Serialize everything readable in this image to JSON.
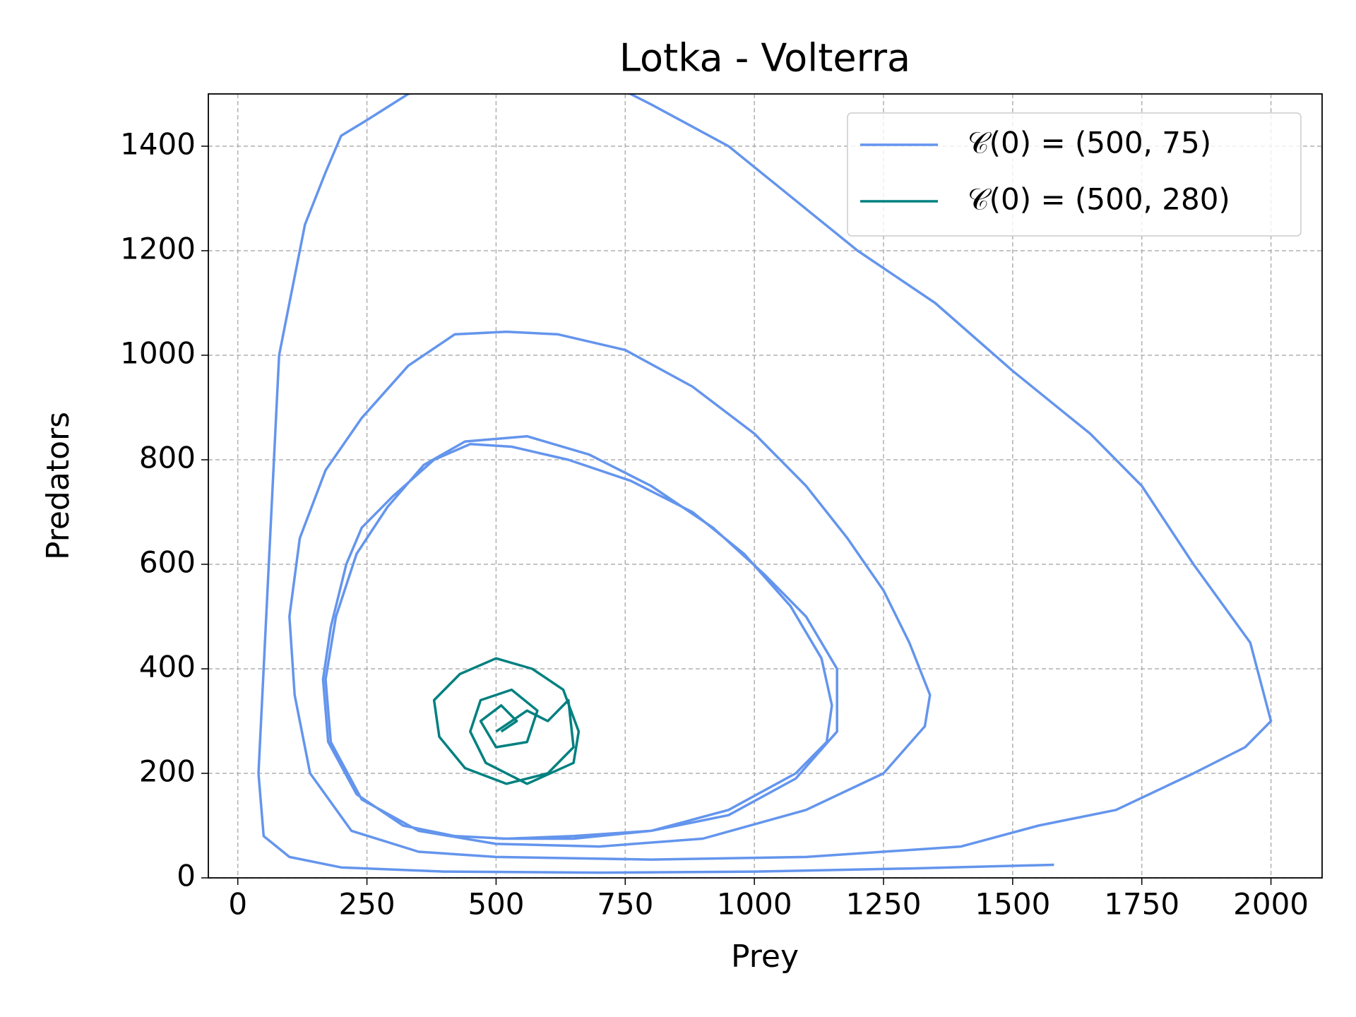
{
  "chart_data": {
    "type": "line",
    "title": "Lotka - Volterra",
    "xlabel": "Prey",
    "ylabel": "Predators",
    "xlim": [
      -57,
      2099
    ],
    "ylim": [
      0,
      1500
    ],
    "xticks": [
      0,
      250,
      500,
      750,
      1000,
      1250,
      1500,
      1750,
      2000
    ],
    "yticks": [
      0,
      200,
      400,
      600,
      800,
      1000,
      1200,
      1400
    ],
    "grid": true,
    "legend": "upper right",
    "series": [
      {
        "name": "𝒞(0) = (500, 75)",
        "color": "#6495ed",
        "x": [
          500,
          650,
          800,
          950,
          1080,
          1140,
          1150,
          1130,
          1070,
          980,
          880,
          760,
          640,
          530,
          450,
          380,
          300,
          240,
          210,
          180,
          165,
          175,
          230,
          320,
          420,
          520,
          650,
          800,
          950,
          1080,
          1160,
          1160,
          1100,
          1020,
          920,
          800,
          680,
          560,
          440,
          360,
          290,
          230,
          190,
          170,
          180,
          240,
          350,
          500,
          700,
          900,
          1100,
          1250,
          1330,
          1340,
          1300,
          1250,
          1180,
          1100,
          1000,
          880,
          750,
          620,
          520,
          420,
          330,
          240,
          170,
          120,
          100,
          110,
          140,
          220,
          350,
          500,
          800,
          1100,
          1400,
          1550,
          1700,
          1850,
          1950,
          2000,
          1960,
          1850,
          1750,
          1650,
          1500,
          1350,
          1200,
          1050,
          950,
          800,
          760,
          550,
          330,
          250,
          200,
          170,
          130,
          100,
          80,
          70,
          60,
          50,
          40,
          50,
          100,
          200,
          400,
          700,
          1000,
          1300,
          1580
        ],
        "values": [
          75,
          75,
          90,
          130,
          200,
          260,
          330,
          420,
          520,
          620,
          700,
          760,
          800,
          825,
          830,
          800,
          730,
          670,
          600,
          480,
          380,
          260,
          160,
          100,
          80,
          75,
          80,
          90,
          120,
          190,
          280,
          400,
          500,
          580,
          670,
          750,
          810,
          845,
          835,
          790,
          710,
          620,
          500,
          380,
          260,
          150,
          90,
          65,
          60,
          75,
          130,
          200,
          290,
          350,
          450,
          550,
          650,
          750,
          850,
          940,
          1010,
          1040,
          1045,
          1040,
          980,
          880,
          780,
          650,
          500,
          350,
          200,
          90,
          50,
          40,
          35,
          40,
          60,
          100,
          130,
          200,
          250,
          300,
          450,
          600,
          750,
          850,
          970,
          1100,
          1200,
          1320,
          1400,
          1480,
          1500,
          1560,
          1500,
          1450,
          1420,
          1350,
          1250,
          1100,
          1000,
          800,
          600,
          400,
          200,
          80,
          40,
          20,
          12,
          10,
          12,
          18,
          25
        ]
      },
      {
        "name": "𝒞(0) = (500, 280)",
        "color": "#008080",
        "x": [
          500,
          560,
          600,
          640,
          650,
          600,
          520,
          440,
          390,
          380,
          430,
          500,
          570,
          630,
          660,
          650,
          560,
          480,
          450,
          470,
          530,
          580,
          560,
          500,
          470,
          510,
          540,
          510
        ],
        "values": [
          280,
          320,
          300,
          340,
          250,
          200,
          180,
          210,
          270,
          340,
          390,
          420,
          400,
          360,
          280,
          220,
          180,
          220,
          280,
          340,
          360,
          320,
          260,
          250,
          300,
          330,
          300,
          280
        ]
      }
    ]
  }
}
